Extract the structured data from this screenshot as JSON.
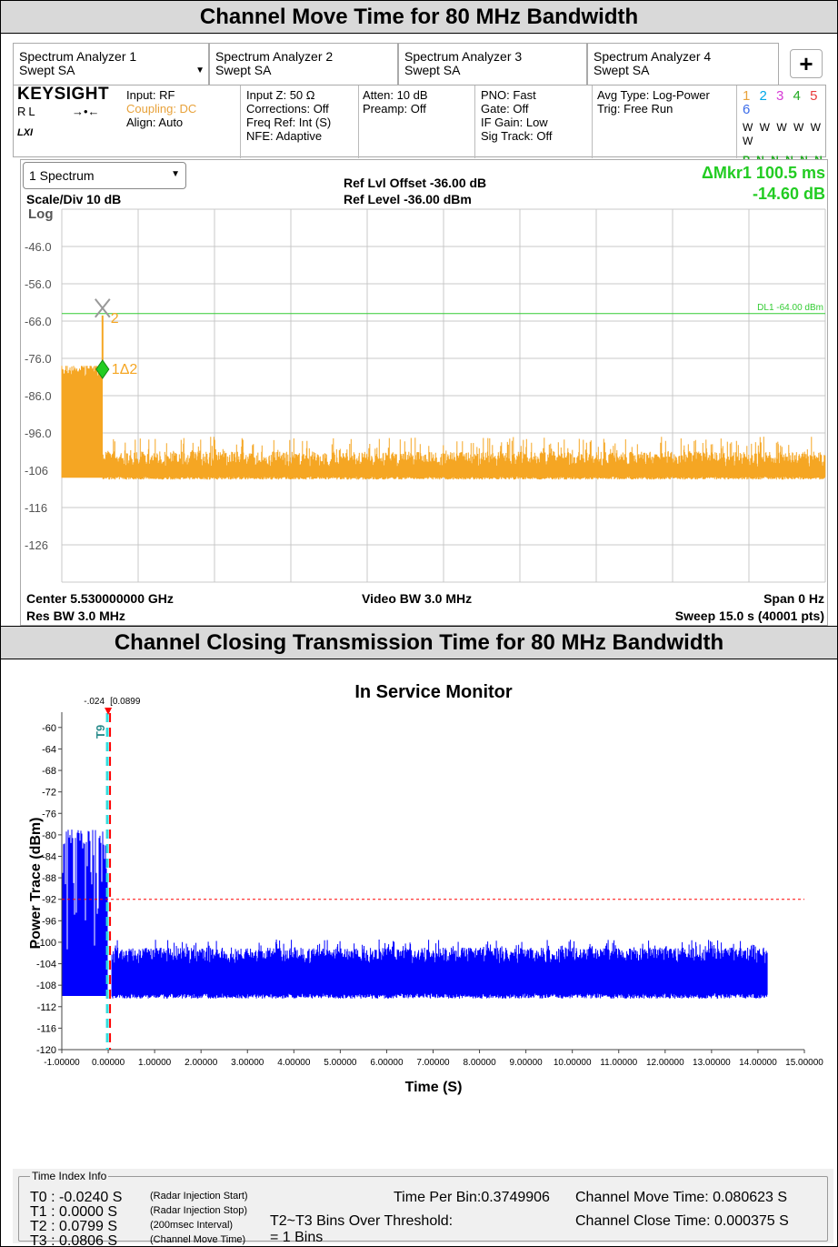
{
  "sections": {
    "top_title": "Channel Move Time for 80 MHz Bandwidth",
    "bottom_title": "Channel Closing Transmission Time for 80 MHz Bandwidth"
  },
  "spectrum_analyzer": {
    "tabs": [
      {
        "line1": "Spectrum Analyzer 1",
        "line2": "Swept SA"
      },
      {
        "line1": "Spectrum Analyzer 2",
        "line2": "Swept SA"
      },
      {
        "line1": "Spectrum Analyzer 3",
        "line2": "Swept SA"
      },
      {
        "line1": "Spectrum Analyzer 4",
        "line2": "Swept SA"
      }
    ],
    "add_tab": "+",
    "brand": "KEYSIGHT",
    "rl_label": "RL",
    "lxi_label": "LXI",
    "input": {
      "input": "Input: RF",
      "coupling": "Coupling: DC",
      "align": "Align: Auto"
    },
    "input_z": {
      "line1": "Input Z: 50 Ω",
      "line2": "Corrections: Off",
      "line3": "Freq Ref: Int (S)",
      "line4": "NFE: Adaptive"
    },
    "atten": {
      "line1": "Atten: 10 dB",
      "line2": "Preamp: Off"
    },
    "pno": {
      "line1": "PNO: Fast",
      "line2": "Gate: Off",
      "line3": "IF Gain: Low",
      "line4": "Sig Track: Off"
    },
    "avg": {
      "line1": "Avg Type: Log-Power",
      "line2": "Trig: Free Run"
    },
    "trace_numbers": "1 2 3 4 5 6",
    "trace_types": "W W W W W W",
    "trace_det": "P N N N N N",
    "screen": {
      "dropdown": "1 Spectrum",
      "scale": "Scale/Div 10 dB",
      "log": "Log",
      "ref_offset": "Ref Lvl Offset -36.00 dB",
      "ref_level": "Ref Level -36.00 dBm",
      "marker_label": "ΔMkr1  100.5 ms",
      "marker_value": "-14.60 dB",
      "dl_label": "DL1 -64.00 dBm",
      "center": "Center 5.530000000 GHz",
      "res_bw": "Res BW 3.0 MHz",
      "video_bw": "Video BW 3.0 MHz",
      "span": "Span 0 Hz",
      "sweep": "Sweep 15.0 s (40001 pts)",
      "marker_2": "2",
      "marker_1d2": "1Δ2"
    },
    "colors": {
      "trace": "#f5a623",
      "display_line": "#33cc33",
      "marker_text": "#f5a623",
      "marker_diamond": "#22cc22"
    }
  },
  "ism": {
    "title": "In Service Monitor",
    "xlabel": "Time (S)",
    "ylabel": "Power Trace (dBm)",
    "t_label_left": "-.024",
    "t_label_right": "[0.0899",
    "t9_label": "T9",
    "colors": {
      "trace": "#0000ff",
      "threshold": "#ff0000",
      "marker": "#ff0000",
      "marker_cyan": "#33dddd"
    }
  },
  "time_index_info": {
    "group_label": "Time Index Info",
    "t0": {
      "label": "T0 : -0.0240  S",
      "note": "(Radar Injection Start)"
    },
    "t1": {
      "label": "T1 : 0.0000  S",
      "note": "(Radar Injection Stop)"
    },
    "t2": {
      "label": "T2 : 0.0799  S",
      "note": "(200msec Interval)"
    },
    "t3": {
      "label": "T3 : 0.0806  S",
      "note": "(Channel Move Time)"
    },
    "time_per_bin": "Time Per Bin:0.3749906",
    "bins_over_threshold_label": "T2~T3 Bins Over Threshold:",
    "bins_over_threshold_value": "= 1 Bins",
    "channel_move_time": "Channel Move Time: 0.080623  S",
    "channel_close_time": "Channel Close Time: 0.000375  S"
  },
  "chart_data": [
    {
      "type": "line",
      "name": "Spectrum Analyzer zero-span trace",
      "x_range_s": [
        0,
        15.0
      ],
      "ylim": [
        -136,
        -36
      ],
      "y_ticks": [
        "-46.0",
        "-56.0",
        "-66.0",
        "-76.0",
        "-86.0",
        "-96.0",
        "-106",
        "-116",
        "-126"
      ],
      "y_tick_values": [
        -46,
        -56,
        -66,
        -76,
        -86,
        -96,
        -106,
        -116,
        -126
      ],
      "display_line_dbm": -64.0,
      "segments": [
        {
          "x_start": 0.0,
          "x_end": 0.8,
          "y_low": -108,
          "y_high": -78,
          "note": "radar burst, peaks near -76"
        },
        {
          "x_start": 0.8,
          "x_end": 15.0,
          "y_low": -109,
          "y_high": -97
        }
      ],
      "markers": [
        {
          "name": "2",
          "x": 0.8,
          "y": -64
        },
        {
          "name": "1Δ2",
          "x": 0.8,
          "y": -76
        }
      ]
    },
    {
      "type": "line",
      "title": "In Service Monitor",
      "xlabel": "Time (S)",
      "ylabel": "Power Trace (dBm)",
      "xlim": [
        -1.0,
        15.0
      ],
      "ylim": [
        -120,
        -58
      ],
      "x_ticks": [
        "-1.00000",
        "0.00000",
        "1.00000",
        "2.00000",
        "3.00000",
        "4.00000",
        "5.00000",
        "6.00000",
        "7.00000",
        "8.00000",
        "9.00000",
        "10.00000",
        "11.00000",
        "12.00000",
        "13.00000",
        "14.00000",
        "15.00000"
      ],
      "x_tick_values": [
        -1,
        0,
        1,
        2,
        3,
        4,
        5,
        6,
        7,
        8,
        9,
        10,
        11,
        12,
        13,
        14,
        15
      ],
      "y_ticks": [
        "-60",
        "-64",
        "-68",
        "-72",
        "-76",
        "-80",
        "-84",
        "-88",
        "-92",
        "-96",
        "-100",
        "-104",
        "-108",
        "-112",
        "-116",
        "-120"
      ],
      "y_tick_values": [
        -60,
        -64,
        -68,
        -72,
        -76,
        -80,
        -84,
        -88,
        -92,
        -96,
        -100,
        -104,
        -108,
        -112,
        -116,
        -120
      ],
      "threshold_dbm": -92,
      "marker_x": 0.0,
      "segments": [
        {
          "x_start": -0.98,
          "x_end": -0.02,
          "y_low": -110,
          "y_high": -79
        },
        {
          "x_start": 0.08,
          "x_end": 14.2,
          "y_low": -110.5,
          "y_high": -100
        }
      ]
    }
  ]
}
